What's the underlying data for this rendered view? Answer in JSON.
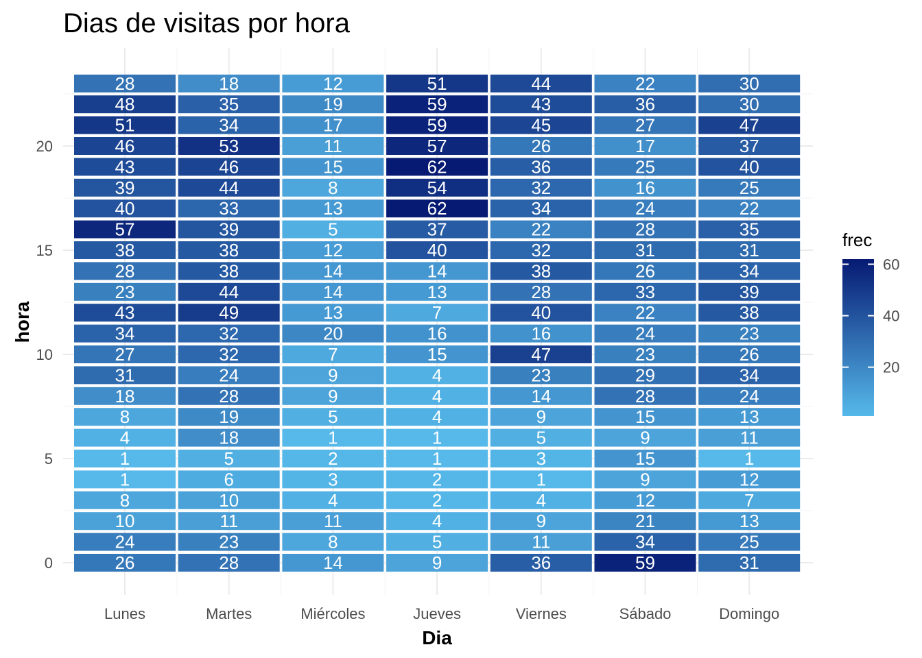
{
  "chart_data": {
    "type": "heatmap",
    "title": "Dias de visitas por hora",
    "xlabel": "Dia",
    "ylabel": "hora",
    "categories": [
      "Lunes",
      "Martes",
      "Miércoles",
      "Jueves",
      "Viernes",
      "Sábado",
      "Domingo"
    ],
    "hours": [
      0,
      1,
      2,
      3,
      4,
      5,
      6,
      7,
      8,
      9,
      10,
      11,
      12,
      13,
      14,
      15,
      16,
      17,
      18,
      19,
      20,
      21,
      22,
      23
    ],
    "y_ticks": [
      0,
      5,
      10,
      15,
      20
    ],
    "legend": {
      "title": "frec",
      "ticks": [
        20,
        40,
        60
      ],
      "range": [
        1,
        62
      ],
      "low_color": "#56B9EA",
      "high_color": "#061A73"
    },
    "grid": true,
    "legend_position": "right",
    "values": {
      "Lunes": [
        26,
        24,
        10,
        8,
        1,
        1,
        4,
        8,
        18,
        31,
        27,
        34,
        43,
        23,
        28,
        38,
        57,
        40,
        39,
        43,
        46,
        51,
        48,
        28
      ],
      "Martes": [
        28,
        23,
        11,
        10,
        6,
        5,
        18,
        19,
        28,
        24,
        32,
        32,
        49,
        44,
        38,
        38,
        39,
        33,
        44,
        46,
        53,
        34,
        35,
        18
      ],
      "Miércoles": [
        14,
        8,
        11,
        4,
        3,
        2,
        1,
        5,
        9,
        9,
        7,
        20,
        13,
        14,
        14,
        12,
        5,
        13,
        8,
        15,
        11,
        17,
        19,
        12
      ],
      "Jueves": [
        9,
        5,
        4,
        2,
        2,
        1,
        1,
        4,
        4,
        4,
        15,
        16,
        7,
        13,
        14,
        40,
        37,
        62,
        54,
        62,
        57,
        59,
        59,
        51
      ],
      "Viernes": [
        36,
        11,
        9,
        4,
        1,
        3,
        5,
        9,
        14,
        23,
        47,
        16,
        40,
        28,
        38,
        32,
        22,
        34,
        32,
        36,
        26,
        45,
        43,
        44
      ],
      "Sábado": [
        59,
        34,
        21,
        12,
        9,
        15,
        9,
        15,
        28,
        29,
        23,
        24,
        22,
        33,
        26,
        31,
        28,
        24,
        16,
        25,
        17,
        27,
        36,
        22
      ],
      "Domingo": [
        31,
        25,
        13,
        7,
        12,
        1,
        11,
        13,
        24,
        34,
        26,
        23,
        38,
        39,
        34,
        31,
        35,
        22,
        25,
        40,
        37,
        47,
        30,
        30
      ]
    }
  }
}
